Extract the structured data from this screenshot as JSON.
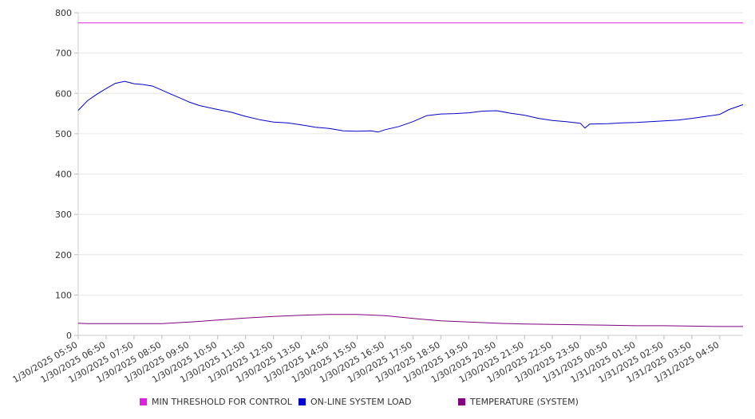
{
  "chart_data": {
    "type": "line",
    "ylim": [
      0,
      800
    ],
    "y_ticks": [
      0,
      100,
      200,
      300,
      400,
      500,
      600,
      700,
      800
    ],
    "x_tick_labels": [
      "1/30/2025 05:50",
      "1/30/2025 06:50",
      "1/30/2025 07:50",
      "1/30/2025 08:50",
      "1/30/2025 09:50",
      "1/30/2025 10:50",
      "1/30/2025 11:50",
      "1/30/2025 12:50",
      "1/30/2025 13:50",
      "1/30/2025 14:50",
      "1/30/2025 15:50",
      "1/30/2025 16:50",
      "1/30/2025 17:50",
      "1/30/2025 18:50",
      "1/30/2025 19:50",
      "1/30/2025 20:50",
      "1/30/2025 21:50",
      "1/30/2025 22:50",
      "1/30/2025 23:50",
      "1/31/2025 00:50",
      "1/31/2025 01:50",
      "1/31/2025 02:50",
      "1/31/2025 03:50",
      "1/31/2025 04:50"
    ],
    "x_range": [
      "1/30/2025 05:50",
      "1/31/2025 05:40"
    ],
    "grid": "horizontal",
    "legend_position": "bottom",
    "series": [
      {
        "name": "MIN THRESHOLD FOR CONTROL",
        "color": "#e020e0",
        "x": [
          "1/30/2025 05:50",
          "1/31/2025 05:40"
        ],
        "values": [
          775,
          775
        ]
      },
      {
        "name": "ON-LINE SYSTEM LOAD",
        "color": "#0000cc",
        "x": [
          "1/30/2025 05:50",
          "1/30/2025 06:10",
          "1/30/2025 06:30",
          "1/30/2025 06:50",
          "1/30/2025 07:10",
          "1/30/2025 07:30",
          "1/30/2025 07:50",
          "1/30/2025 08:10",
          "1/30/2025 08:30",
          "1/30/2025 08:50",
          "1/30/2025 09:10",
          "1/30/2025 09:30",
          "1/30/2025 09:50",
          "1/30/2025 10:10",
          "1/30/2025 10:30",
          "1/30/2025 10:50",
          "1/30/2025 11:20",
          "1/30/2025 11:50",
          "1/30/2025 12:20",
          "1/30/2025 12:50",
          "1/30/2025 13:20",
          "1/30/2025 13:50",
          "1/30/2025 14:20",
          "1/30/2025 14:50",
          "1/30/2025 15:20",
          "1/30/2025 15:50",
          "1/30/2025 16:20",
          "1/30/2025 16:35",
          "1/30/2025 16:50",
          "1/30/2025 17:20",
          "1/30/2025 17:50",
          "1/30/2025 18:20",
          "1/30/2025 18:50",
          "1/30/2025 19:20",
          "1/30/2025 19:50",
          "1/30/2025 20:20",
          "1/30/2025 20:50",
          "1/30/2025 21:20",
          "1/30/2025 21:50",
          "1/30/2025 22:20",
          "1/30/2025 22:50",
          "1/30/2025 23:20",
          "1/30/2025 23:50",
          "1/31/2025 00:00",
          "1/31/2025 00:10",
          "1/31/2025 00:50",
          "1/31/2025 01:20",
          "1/31/2025 01:50",
          "1/31/2025 02:20",
          "1/31/2025 02:50",
          "1/31/2025 03:20",
          "1/31/2025 03:50",
          "1/31/2025 04:20",
          "1/31/2025 04:50",
          "1/31/2025 05:10",
          "1/31/2025 05:40"
        ],
        "values": [
          558,
          582,
          598,
          612,
          625,
          630,
          624,
          622,
          618,
          608,
          598,
          588,
          578,
          570,
          565,
          560,
          553,
          543,
          535,
          529,
          527,
          522,
          516,
          513,
          507,
          506,
          507,
          504,
          510,
          518,
          530,
          545,
          549,
          550,
          552,
          556,
          557,
          551,
          546,
          538,
          533,
          530,
          526,
          514,
          524,
          525,
          527,
          528,
          530,
          532,
          534,
          538,
          543,
          548,
          560,
          572
        ]
      },
      {
        "name": "TEMPERATURE (SYSTEM)",
        "color": "#800080",
        "x": [
          "1/30/2025 05:50",
          "1/30/2025 06:10",
          "1/30/2025 06:50",
          "1/30/2025 07:50",
          "1/30/2025 08:50",
          "1/30/2025 09:50",
          "1/30/2025 10:50",
          "1/30/2025 11:50",
          "1/30/2025 12:50",
          "1/30/2025 13:50",
          "1/30/2025 14:50",
          "1/30/2025 15:50",
          "1/30/2025 16:50",
          "1/30/2025 17:50",
          "1/30/2025 18:50",
          "1/30/2025 19:50",
          "1/30/2025 20:50",
          "1/30/2025 21:50",
          "1/30/2025 22:50",
          "1/30/2025 23:50",
          "1/31/2025 00:50",
          "1/31/2025 01:50",
          "1/31/2025 02:50",
          "1/31/2025 03:50",
          "1/31/2025 04:50",
          "1/31/2025 05:40"
        ],
        "values": [
          30,
          29,
          29,
          29,
          29,
          33,
          38,
          43,
          47,
          50,
          52,
          52,
          49,
          42,
          36,
          33,
          30,
          28,
          27,
          26,
          25,
          24,
          24,
          23,
          22,
          22
        ]
      }
    ]
  }
}
